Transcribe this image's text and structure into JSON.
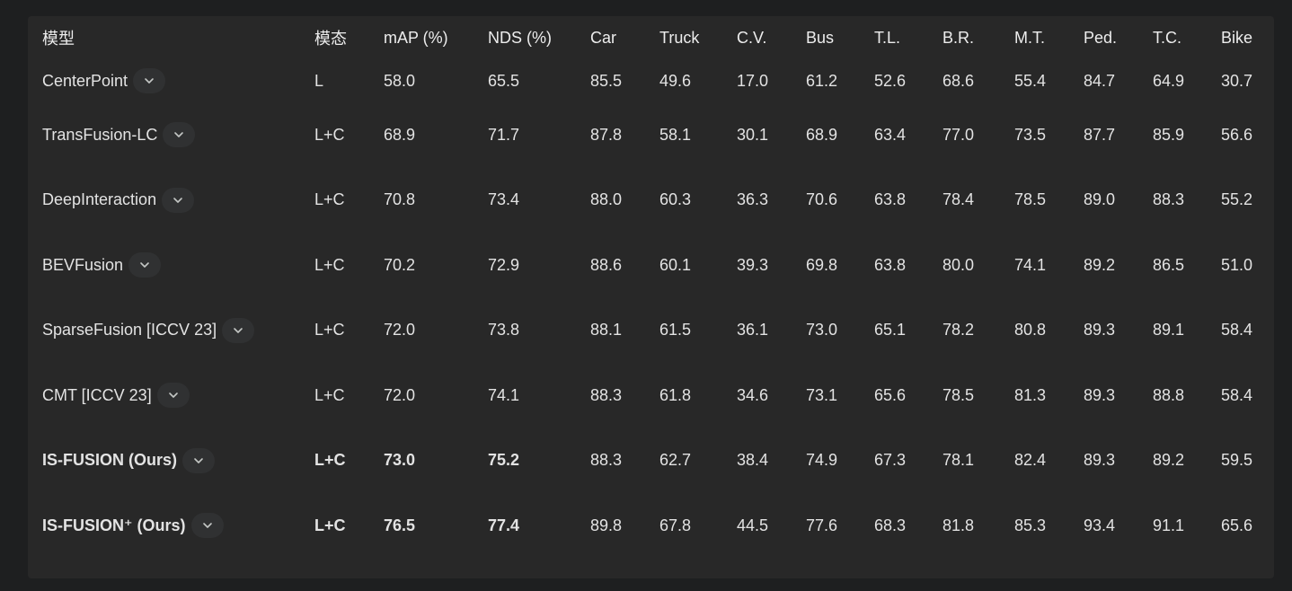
{
  "table": {
    "headers": [
      "模型",
      "模态",
      "mAP (%)",
      "NDS (%)",
      "Car",
      "Truck",
      "C.V.",
      "Bus",
      "T.L.",
      "B.R.",
      "M.T.",
      "Ped.",
      "T.C.",
      "Bike"
    ],
    "rows": [
      {
        "model": "CenterPoint",
        "modality": "L",
        "map": "58.0",
        "nds": "65.5",
        "car": "85.5",
        "truck": "49.6",
        "cv": "17.0",
        "bus": "61.2",
        "tl": "52.6",
        "br": "68.6",
        "mt": "55.4",
        "ped": "84.7",
        "tc": "64.9",
        "bike": "30.7"
      },
      {
        "model": "TransFusion-LC",
        "modality": "L+C",
        "map": "68.9",
        "nds": "71.7",
        "car": "87.8",
        "truck": "58.1",
        "cv": "30.1",
        "bus": "68.9",
        "tl": "63.4",
        "br": "77.0",
        "mt": "73.5",
        "ped": "87.7",
        "tc": "85.9",
        "bike": "56.6"
      },
      {
        "model": "DeepInteraction",
        "modality": "L+C",
        "map": "70.8",
        "nds": "73.4",
        "car": "88.0",
        "truck": "60.3",
        "cv": "36.3",
        "bus": "70.6",
        "tl": "63.8",
        "br": "78.4",
        "mt": "78.5",
        "ped": "89.0",
        "tc": "88.3",
        "bike": "55.2"
      },
      {
        "model": "BEVFusion",
        "modality": "L+C",
        "map": "70.2",
        "nds": "72.9",
        "car": "88.6",
        "truck": "60.1",
        "cv": "39.3",
        "bus": "69.8",
        "tl": "63.8",
        "br": "80.0",
        "mt": "74.1",
        "ped": "89.2",
        "tc": "86.5",
        "bike": "51.0"
      },
      {
        "model": "SparseFusion [ICCV 23]",
        "modality": "L+C",
        "map": "72.0",
        "nds": "73.8",
        "car": "88.1",
        "truck": "61.5",
        "cv": "36.1",
        "bus": "73.0",
        "tl": "65.1",
        "br": "78.2",
        "mt": "80.8",
        "ped": "89.3",
        "tc": "89.1",
        "bike": "58.4"
      },
      {
        "model": "CMT [ICCV 23]",
        "modality": "L+C",
        "map": "72.0",
        "nds": "74.1",
        "car": "88.3",
        "truck": "61.8",
        "cv": "34.6",
        "bus": "73.1",
        "tl": "65.6",
        "br": "78.5",
        "mt": "81.3",
        "ped": "89.3",
        "tc": "88.8",
        "bike": "58.4"
      },
      {
        "model": "IS-FUSION (Ours)",
        "modality": "L+C",
        "map": "73.0",
        "nds": "75.2",
        "car": "88.3",
        "truck": "62.7",
        "cv": "38.4",
        "bus": "74.9",
        "tl": "67.3",
        "br": "78.1",
        "mt": "82.4",
        "ped": "89.3",
        "tc": "89.2",
        "bike": "59.5"
      },
      {
        "model": "IS-FUSION⁺ (Ours)",
        "modality": "L+C",
        "map": "76.5",
        "nds": "77.4",
        "car": "89.8",
        "truck": "67.8",
        "cv": "44.5",
        "bus": "77.6",
        "tl": "68.3",
        "br": "81.8",
        "mt": "85.3",
        "ped": "93.4",
        "tc": "91.1",
        "bike": "65.6"
      }
    ]
  },
  "icons": {
    "row_expand": "chevron-down-icon"
  },
  "colors": {
    "page_bg": "#1e1f20",
    "panel_bg": "#282828",
    "chip_bg": "#303132",
    "text": "#e3e3e3"
  }
}
